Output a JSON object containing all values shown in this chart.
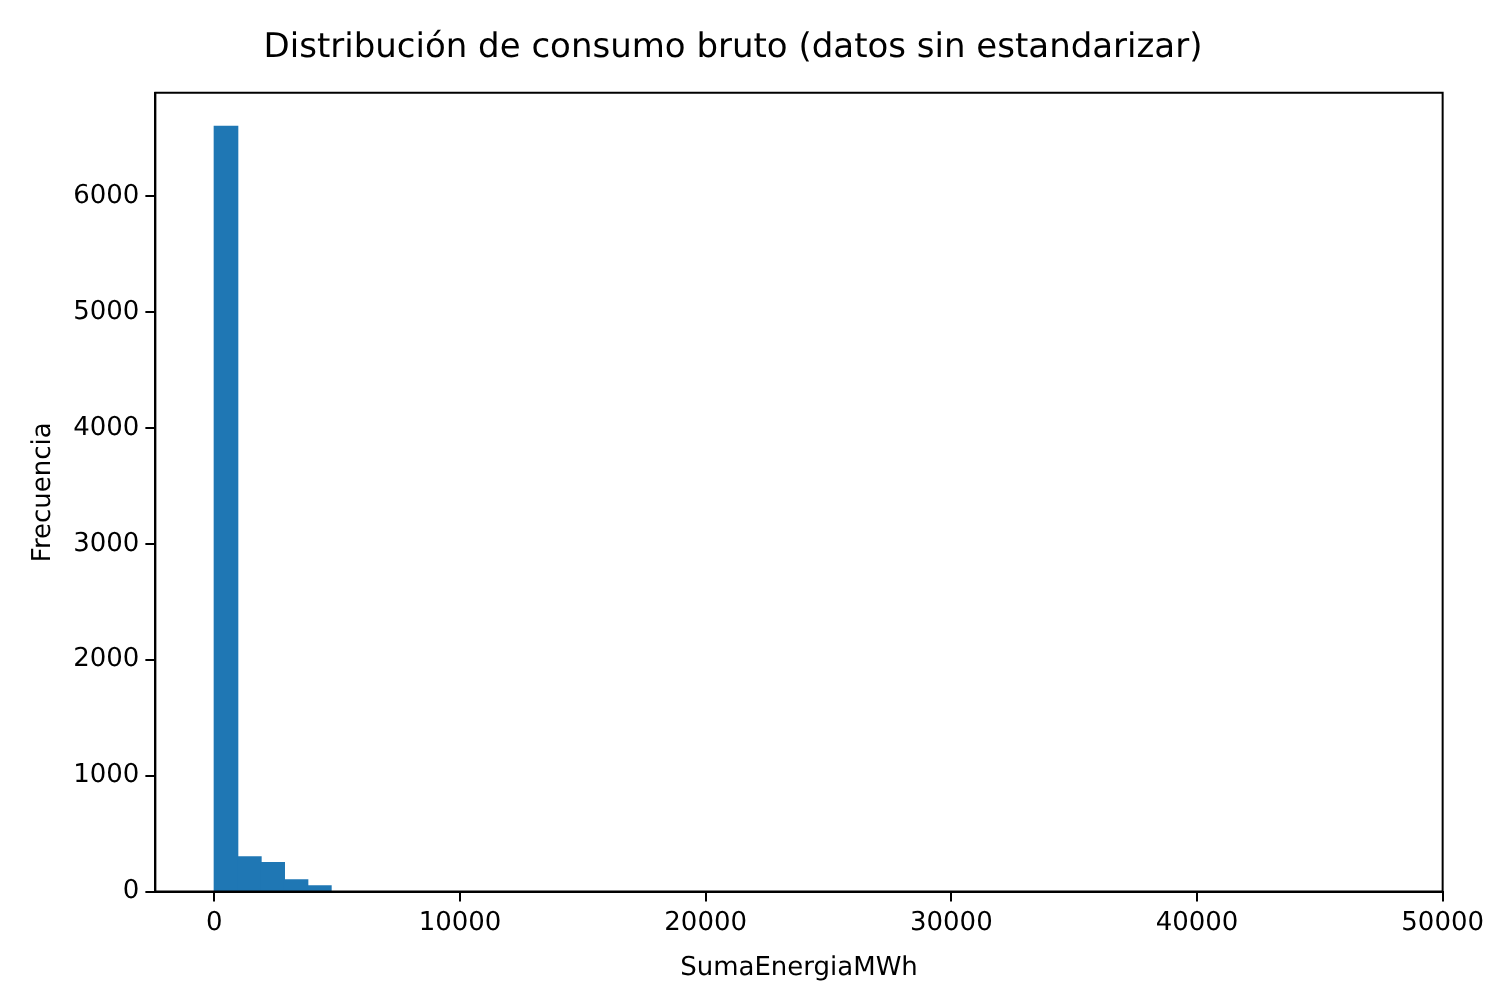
{
  "chart_data": {
    "type": "histogram",
    "title": "Distribución de consumo bruto (datos sin estandarizar)",
    "xlabel": "SumaEnergiaMWh",
    "ylabel": "Frecuencia",
    "bins": [
      0,
      950,
      1900,
      2850,
      3800,
      4750,
      5700,
      6650,
      7600,
      8550,
      9500,
      10450,
      11400,
      12350,
      13300,
      14250,
      15200,
      16150,
      17100,
      18050,
      19000,
      19950,
      20900,
      21850,
      22800,
      23750,
      24700,
      25650,
      26600,
      27550,
      28500,
      29450,
      30400,
      31350,
      32300,
      33250,
      34200,
      35150,
      36100,
      37050,
      38000,
      38950,
      39900,
      40850,
      41800,
      42750,
      43700,
      44650,
      45600,
      46550,
      47500
    ],
    "values": [
      6600,
      300,
      250,
      100,
      50,
      0,
      0,
      0,
      0,
      0,
      0,
      0,
      0,
      0,
      0,
      0,
      0,
      0,
      0,
      0,
      0,
      0,
      0,
      0,
      0,
      0,
      0,
      0,
      0,
      0,
      0,
      0,
      0,
      0,
      0,
      0,
      0,
      0,
      0,
      0,
      0,
      0,
      0,
      0,
      0,
      0,
      0,
      0,
      0,
      0
    ],
    "color": "#1f77b4",
    "xlim": [
      -2400,
      50000
    ],
    "xticks": [
      0,
      10000,
      20000,
      30000,
      40000,
      50000
    ],
    "ylim": [
      0,
      6890
    ],
    "yticks": [
      0,
      1000,
      2000,
      3000,
      4000,
      5000,
      6000
    ],
    "grid": false,
    "legend": false
  }
}
